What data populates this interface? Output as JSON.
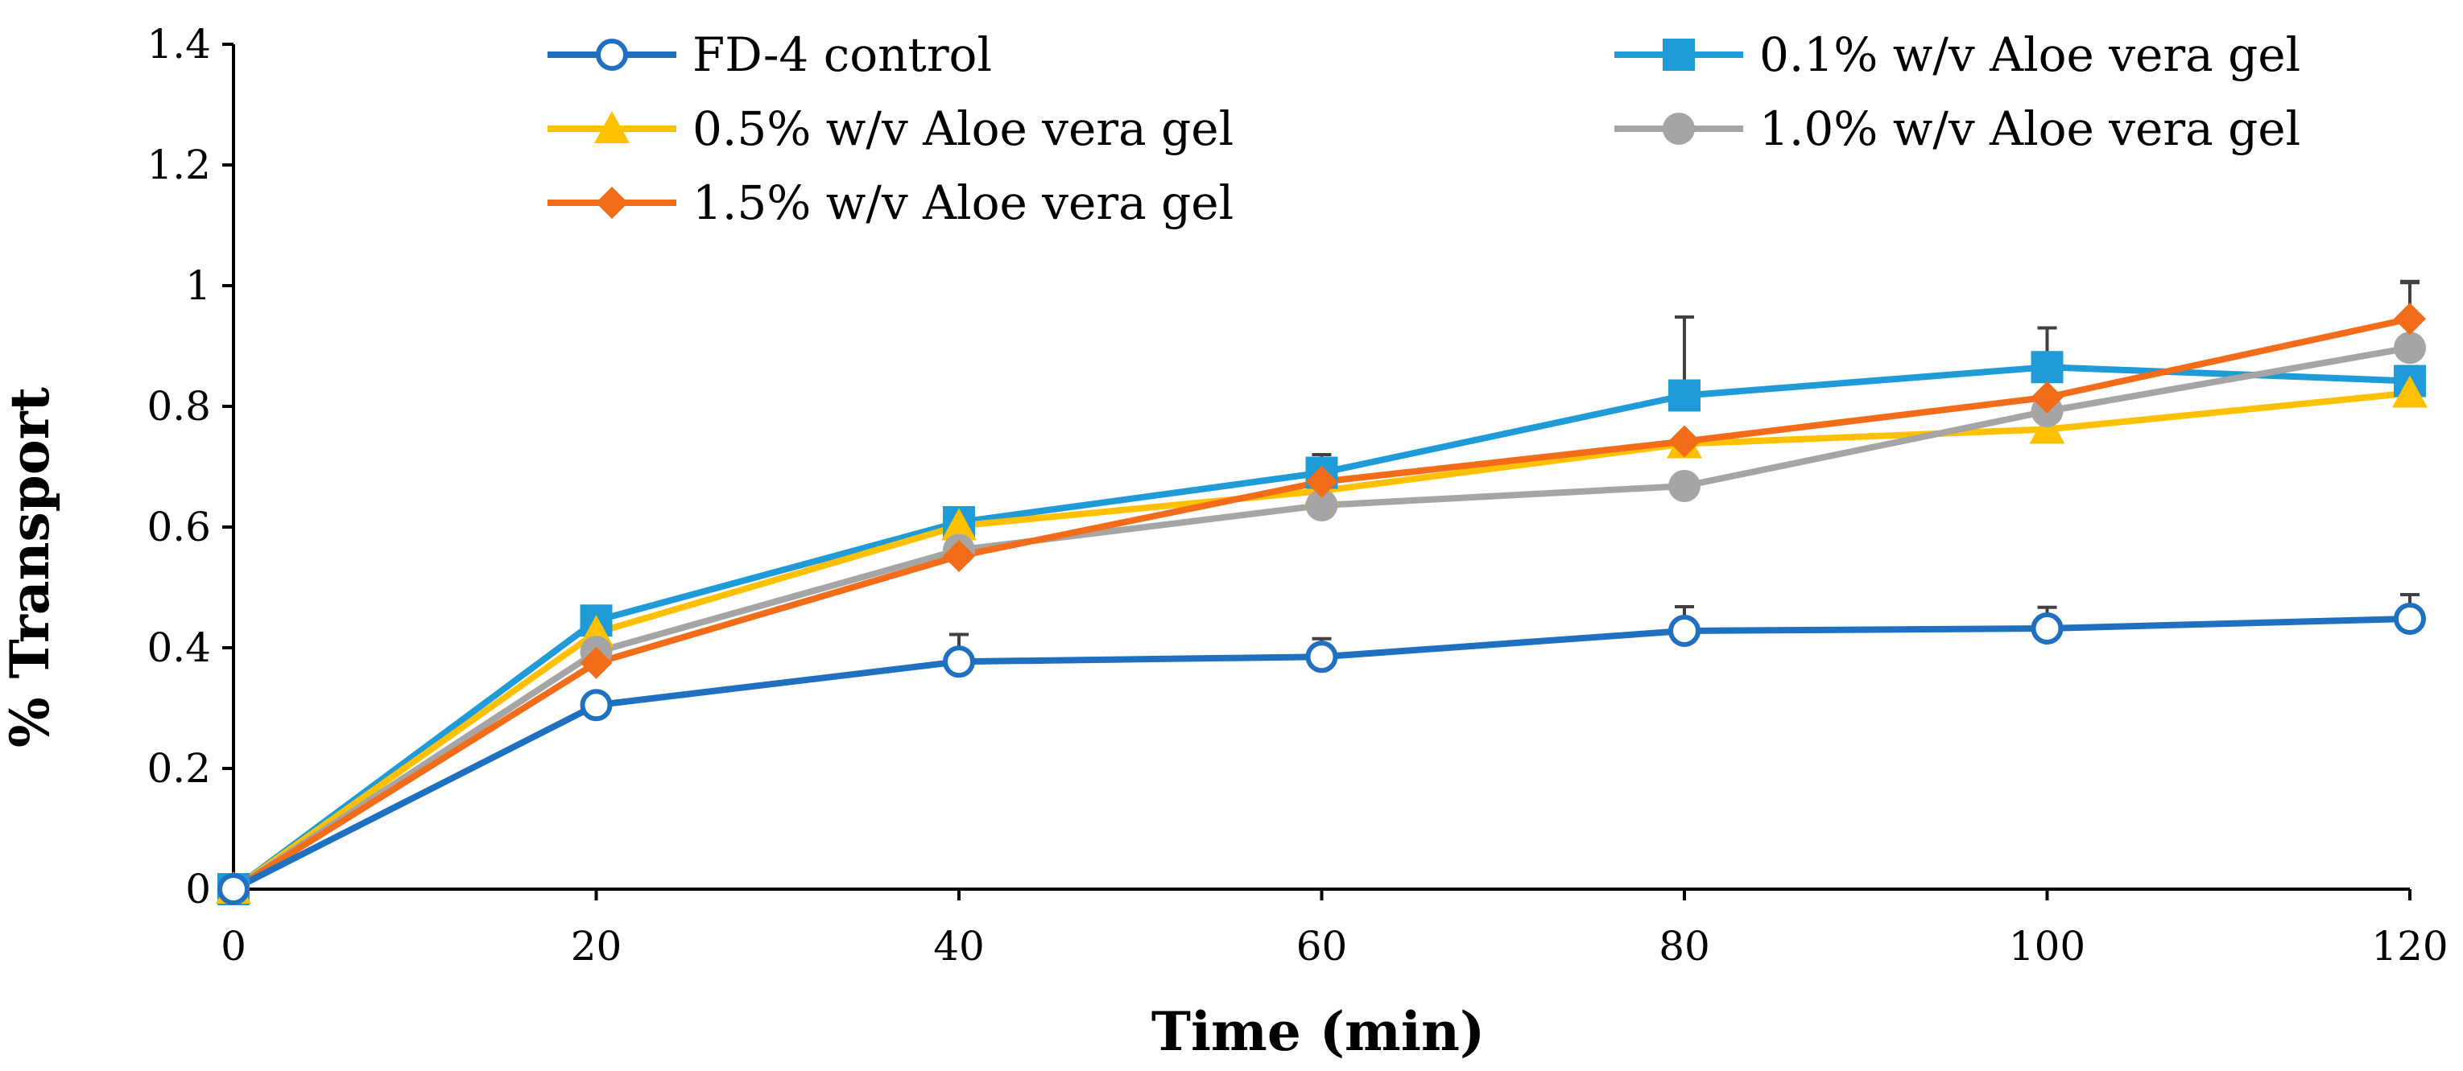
{
  "chart_data": {
    "type": "line",
    "title": "",
    "xlabel": "Time (min)",
    "ylabel": "% Transport",
    "xlim": [
      0,
      120
    ],
    "ylim": [
      0,
      1.4
    ],
    "xticks": [
      0,
      20,
      40,
      60,
      80,
      100,
      120
    ],
    "xtick_labels": [
      "0",
      "20",
      "40",
      "60",
      "80",
      "100",
      "120"
    ],
    "yticks": [
      0,
      0.2,
      0.4,
      0.6,
      0.8,
      1,
      1.2,
      1.4
    ],
    "ytick_labels": [
      "0",
      "0.2",
      "0.4",
      "0.6",
      "0.8",
      "1",
      "1.2",
      "1.4"
    ],
    "grid": false,
    "legend_position": "top",
    "x": [
      0,
      20,
      40,
      60,
      80,
      100,
      120
    ],
    "series": [
      {
        "name": "FD-4 control",
        "color": "#1F70C1",
        "marker": "open-circle",
        "values": [
          0,
          0.305,
          0.377,
          0.385,
          0.428,
          0.432,
          0.448
        ],
        "errors": [
          0,
          0.015,
          0.045,
          0.03,
          0.04,
          0.035,
          0.04
        ]
      },
      {
        "name": "0.1% w/v Aloe vera gel",
        "color": "#1F9BD7",
        "marker": "square",
        "values": [
          0,
          0.445,
          0.608,
          0.69,
          0.818,
          0.865,
          0.842
        ],
        "errors": [
          0,
          0,
          0,
          0.03,
          0.13,
          0.065,
          0
        ]
      },
      {
        "name": "0.5% w/v Aloe vera gel",
        "color": "#FFC000",
        "marker": "triangle",
        "values": [
          0,
          0.425,
          0.602,
          0.66,
          0.738,
          0.762,
          0.822
        ],
        "errors": [
          0,
          0,
          0,
          0,
          0,
          0,
          0
        ]
      },
      {
        "name": "1.0% w/v Aloe vera gel",
        "color": "#A5A5A5",
        "marker": "circle",
        "values": [
          0,
          0.393,
          0.562,
          0.636,
          0.668,
          0.792,
          0.897
        ],
        "errors": [
          0,
          0,
          0,
          0,
          0,
          0,
          0.11
        ]
      },
      {
        "name": "1.5% w/v Aloe vera gel",
        "color": "#F26C1A",
        "marker": "diamond",
        "values": [
          0,
          0.375,
          0.552,
          0.675,
          0.742,
          0.815,
          0.945
        ],
        "errors": [
          0,
          0,
          0,
          0,
          0,
          0,
          0.06
        ]
      }
    ]
  }
}
